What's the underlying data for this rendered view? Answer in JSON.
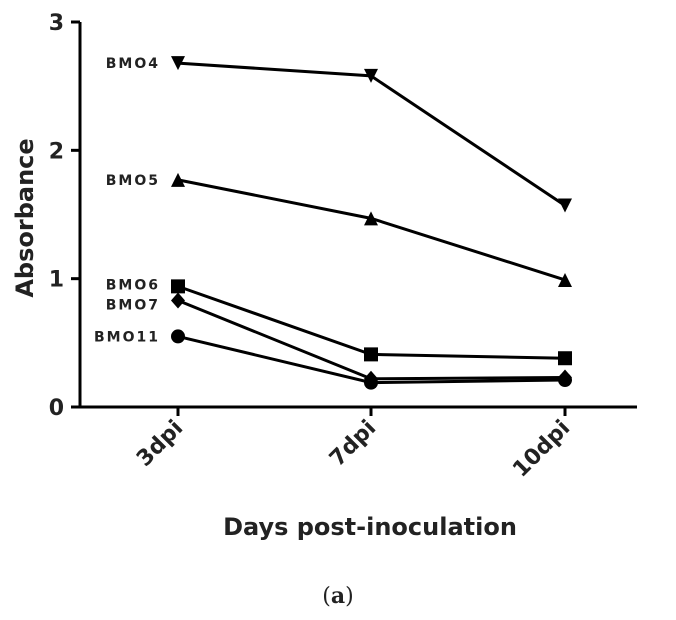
{
  "chart_data": {
    "type": "line",
    "categories": [
      "3dpi",
      "7dpi",
      "10dpi"
    ],
    "xlabel": "Days post-inoculation",
    "ylabel": "Absorbance",
    "ylim": [
      0,
      3
    ],
    "yticks": [
      0,
      1,
      2,
      3
    ],
    "grid": false,
    "legend": "labels at left end of each line",
    "series": [
      {
        "name": "BMO4",
        "marker": "triangle-down",
        "values": [
          2.68,
          2.58,
          1.57
        ]
      },
      {
        "name": "BMO5",
        "marker": "triangle-up",
        "values": [
          1.77,
          1.47,
          0.99
        ]
      },
      {
        "name": "BMO6",
        "marker": "square",
        "values": [
          0.94,
          0.41,
          0.38
        ]
      },
      {
        "name": "BMO7",
        "marker": "diamond",
        "values": [
          0.83,
          0.22,
          0.23
        ]
      },
      {
        "name": "BMO11",
        "marker": "circle",
        "values": [
          0.55,
          0.19,
          0.21
        ]
      }
    ]
  },
  "caption": {
    "open": "(",
    "letter": "a",
    "close": ")"
  },
  "colors": {
    "ink": "#000000",
    "text": "#222222"
  }
}
